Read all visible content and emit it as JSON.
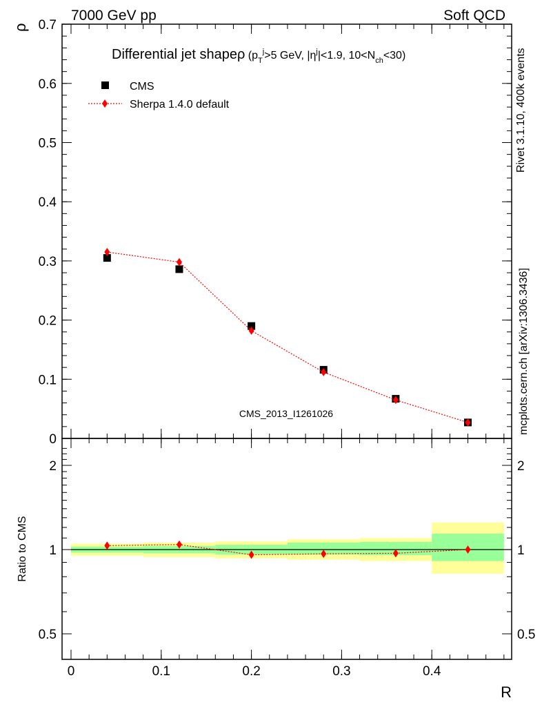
{
  "header": {
    "energy": "7000 GeV pp",
    "category": "Soft QCD"
  },
  "side_labels": {
    "rivet": "Rivet 3.1.10,  400k events",
    "mcplots": "mcplots.cern.ch [arXiv:1306.3436]"
  },
  "watermark": "CMS_2013_I1261026",
  "colors": {
    "mc": "#ff0000",
    "data": "#000000",
    "band_inner": "#99ff99",
    "band_outer": "#ffff99",
    "side_text": "#888888",
    "watermark": "#999999"
  },
  "chart_data": [
    {
      "type": "scatter",
      "panel": "main",
      "title": "Differential jet shape ρ (p_T^j>5 GeV, |η^j|<1.9, 10<N_ch<30)",
      "title_parts": {
        "main": "Differential jet shape",
        "rho": "ρ",
        "open": " (p",
        "T": "T",
        "j1": "j",
        "mid": ">5 GeV, |η",
        "j2": "j",
        "mid2": "|<1.9, 10<N",
        "ch": "ch",
        "close": "<30)"
      },
      "xlabel": "R",
      "ylabel": "ρ",
      "xlim": [
        -0.02,
        0.49
      ],
      "ylim": [
        0,
        0.7
      ],
      "yticks": [
        "0",
        "0.1",
        "0.2",
        "0.3",
        "0.4",
        "0.5",
        "0.6",
        "0.7"
      ],
      "xticks": [
        "0",
        "0.1",
        "0.2",
        "0.3",
        "0.4"
      ],
      "legend_position": "top-left",
      "series": [
        {
          "name": "CMS",
          "marker": "square",
          "x": [
            0.04,
            0.12,
            0.2,
            0.28,
            0.36,
            0.44
          ],
          "values": [
            0.305,
            0.286,
            0.19,
            0.116,
            0.067,
            0.027
          ]
        },
        {
          "name": "Sherpa 1.4.0 default",
          "marker": "diamond",
          "line": "dotted",
          "x": [
            0.04,
            0.12,
            0.2,
            0.28,
            0.36,
            0.44
          ],
          "values": [
            0.315,
            0.298,
            0.182,
            0.112,
            0.065,
            0.027
          ]
        }
      ]
    },
    {
      "type": "scatter",
      "panel": "ratio",
      "ylabel": "Ratio to CMS",
      "xlabel": "R",
      "ylim": [
        0.4,
        2.4
      ],
      "yscale": "log",
      "yticks": [
        "0.5",
        "1",
        "2"
      ],
      "bin_edges": [
        0,
        0.08,
        0.16,
        0.24,
        0.32,
        0.4,
        0.48
      ],
      "band_inner": [
        [
          0.975,
          1.025
        ],
        [
          0.97,
          1.03
        ],
        [
          0.96,
          1.04
        ],
        [
          0.96,
          1.06
        ],
        [
          0.955,
          1.065
        ],
        [
          0.91,
          1.14
        ]
      ],
      "band_outer": [
        [
          0.95,
          1.05
        ],
        [
          0.94,
          1.06
        ],
        [
          0.93,
          1.07
        ],
        [
          0.92,
          1.09
        ],
        [
          0.91,
          1.1
        ],
        [
          0.82,
          1.25
        ]
      ],
      "series": [
        {
          "name": "Sherpa 1.4.0 default",
          "x": [
            0.04,
            0.12,
            0.2,
            0.28,
            0.36,
            0.44
          ],
          "values": [
            1.033,
            1.042,
            0.958,
            0.966,
            0.97,
            1.0
          ]
        }
      ]
    }
  ]
}
